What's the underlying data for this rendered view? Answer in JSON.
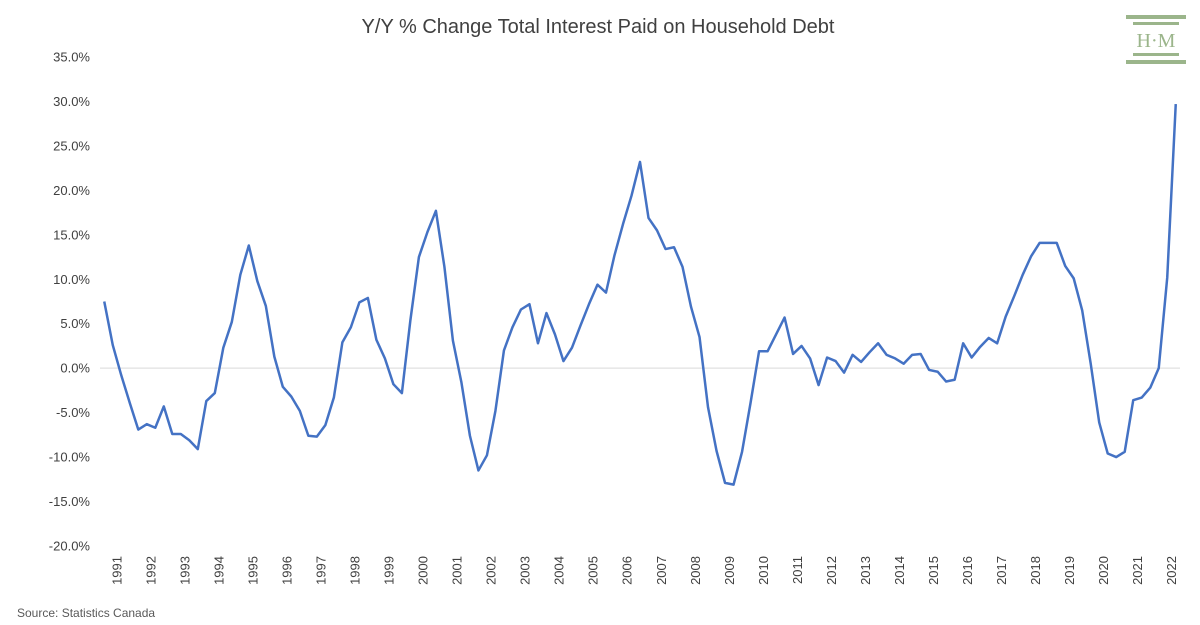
{
  "chart_data": {
    "type": "line",
    "title": "Y/Y % Change Total Interest Paid on Household Debt",
    "xlabel": "",
    "ylabel": "",
    "ylim": [
      -20,
      35
    ],
    "ytick_values": [
      35,
      30,
      25,
      20,
      15,
      10,
      5,
      0,
      -5,
      -10,
      -15,
      -20
    ],
    "ytick_labels": [
      "35.0%",
      "30.0%",
      "25.0%",
      "20.0%",
      "15.0%",
      "10.0%",
      "5.0%",
      "0.0%",
      "-5.0%",
      "-10.0%",
      "-15.0%",
      "-20.0%"
    ],
    "xtick_labels": [
      "1991",
      "1992",
      "1993",
      "1994",
      "1995",
      "1996",
      "1997",
      "1998",
      "1999",
      "2000",
      "2001",
      "2002",
      "2003",
      "2004",
      "2005",
      "2006",
      "2007",
      "2008",
      "2009",
      "2010",
      "2011",
      "2012",
      "2013",
      "2014",
      "2015",
      "2016",
      "2017",
      "2018",
      "2019",
      "2020",
      "2021",
      "2022"
    ],
    "grid": "zero line only",
    "legend": "none",
    "line_color": "#4472c4",
    "zero_line_color": "#d9d9d9",
    "series": [
      {
        "frequency": "quarterly",
        "start": "1991 Q1",
        "values": [
          7.5,
          2.6,
          -0.8,
          -3.9,
          -6.9,
          -6.3,
          -6.7,
          -4.3,
          -7.4,
          -7.4,
          -8.1,
          -9.1,
          -3.7,
          -2.8,
          2.3,
          5.2,
          10.5,
          13.8,
          9.8,
          7.0,
          1.3,
          -2.1,
          -3.2,
          -4.8,
          -7.6,
          -7.7,
          -6.4,
          -3.3,
          2.9,
          4.6,
          7.4,
          7.9,
          3.2,
          1.1,
          -1.8,
          -2.8,
          5.4,
          12.5,
          15.3,
          17.7,
          11.4,
          3.1,
          -1.6,
          -7.6,
          -11.5,
          -9.8,
          -4.8,
          2.0,
          4.6,
          6.6,
          7.2,
          2.8,
          6.2,
          3.8,
          0.8,
          2.3,
          4.8,
          7.2,
          9.4,
          8.5,
          12.7,
          16.2,
          19.4,
          23.2,
          16.9,
          15.5,
          13.4,
          13.6,
          11.4,
          6.9,
          3.5,
          -4.4,
          -9.3,
          -12.9,
          -13.1,
          -9.4,
          -3.9,
          1.9,
          1.9,
          3.8,
          5.7,
          1.6,
          2.5,
          1.1,
          -1.9,
          1.2,
          0.8,
          -0.5,
          1.5,
          0.7,
          1.8,
          2.8,
          1.5,
          1.1,
          0.5,
          1.5,
          1.6,
          -0.2,
          -0.4,
          -1.5,
          -1.3,
          2.8,
          1.2,
          2.4,
          3.4,
          2.8,
          5.8,
          8.1,
          10.5,
          12.6,
          14.1,
          14.1,
          14.1,
          11.5,
          10.1,
          6.5,
          0.5,
          -6.1,
          -9.6,
          -10.0,
          -9.4,
          -3.6,
          -3.3,
          -2.2,
          0.0,
          10.2,
          29.7
        ]
      }
    ]
  },
  "source": "Source: Statistics Canada",
  "logo": {
    "text": "H·M",
    "color": "#9bb58b"
  }
}
